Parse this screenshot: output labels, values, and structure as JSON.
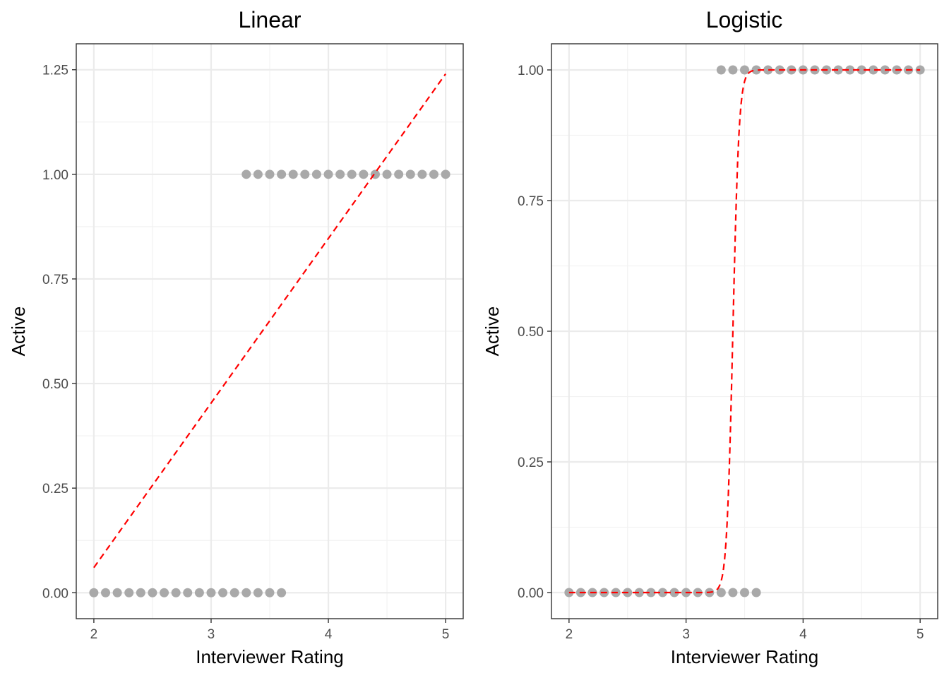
{
  "chart_data": [
    {
      "type": "scatter",
      "title": "Linear",
      "xlabel": "Interviewer Rating",
      "ylabel": "Active",
      "xlim": [
        1.85,
        5.15
      ],
      "ylim": [
        -0.062,
        1.312
      ],
      "x_ticks": [
        2,
        3,
        4,
        5
      ],
      "x_tick_labels": [
        "2",
        "3",
        "4",
        "5"
      ],
      "y_ticks": [
        0,
        0.25,
        0.5,
        0.75,
        1,
        1.25
      ],
      "y_tick_labels": [
        "0.00",
        "0.25",
        "0.50",
        "0.75",
        "1.00",
        "1.25"
      ],
      "grid": true,
      "series": [
        {
          "kind": "points",
          "color": "#a9a9a9",
          "points": [
            [
              2.0,
              0
            ],
            [
              2.1,
              0
            ],
            [
              2.2,
              0
            ],
            [
              2.3,
              0
            ],
            [
              2.4,
              0
            ],
            [
              2.5,
              0
            ],
            [
              2.6,
              0
            ],
            [
              2.7,
              0
            ],
            [
              2.8,
              0
            ],
            [
              2.9,
              0
            ],
            [
              3.0,
              0
            ],
            [
              3.1,
              0
            ],
            [
              3.2,
              0
            ],
            [
              3.3,
              0
            ],
            [
              3.4,
              0
            ],
            [
              3.5,
              0
            ],
            [
              3.6,
              0
            ],
            [
              3.3,
              1
            ],
            [
              3.4,
              1
            ],
            [
              3.5,
              1
            ],
            [
              3.6,
              1
            ],
            [
              3.7,
              1
            ],
            [
              3.8,
              1
            ],
            [
              3.9,
              1
            ],
            [
              4.0,
              1
            ],
            [
              4.1,
              1
            ],
            [
              4.2,
              1
            ],
            [
              4.3,
              1
            ],
            [
              4.4,
              1
            ],
            [
              4.5,
              1
            ],
            [
              4.6,
              1
            ],
            [
              4.7,
              1
            ],
            [
              4.8,
              1
            ],
            [
              4.9,
              1
            ],
            [
              5.0,
              1
            ]
          ]
        },
        {
          "kind": "line",
          "style": "dashed",
          "color": "#ff0000",
          "points": [
            [
              2.0,
              0.06
            ],
            [
              5.0,
              1.24
            ]
          ]
        }
      ]
    },
    {
      "type": "scatter",
      "title": "Logistic",
      "xlabel": "Interviewer Rating",
      "ylabel": "Active",
      "xlim": [
        1.85,
        5.15
      ],
      "ylim": [
        -0.05,
        1.05
      ],
      "x_ticks": [
        2,
        3,
        4,
        5
      ],
      "x_tick_labels": [
        "2",
        "3",
        "4",
        "5"
      ],
      "y_ticks": [
        0,
        0.25,
        0.5,
        0.75,
        1
      ],
      "y_tick_labels": [
        "0.00",
        "0.25",
        "0.50",
        "0.75",
        "1.00"
      ],
      "grid": true,
      "series": [
        {
          "kind": "points",
          "color": "#a9a9a9",
          "points": [
            [
              2.0,
              0
            ],
            [
              2.1,
              0
            ],
            [
              2.2,
              0
            ],
            [
              2.3,
              0
            ],
            [
              2.4,
              0
            ],
            [
              2.5,
              0
            ],
            [
              2.6,
              0
            ],
            [
              2.7,
              0
            ],
            [
              2.8,
              0
            ],
            [
              2.9,
              0
            ],
            [
              3.0,
              0
            ],
            [
              3.1,
              0
            ],
            [
              3.2,
              0
            ],
            [
              3.3,
              0
            ],
            [
              3.4,
              0
            ],
            [
              3.5,
              0
            ],
            [
              3.6,
              0
            ],
            [
              3.3,
              1
            ],
            [
              3.4,
              1
            ],
            [
              3.5,
              1
            ],
            [
              3.6,
              1
            ],
            [
              3.7,
              1
            ],
            [
              3.8,
              1
            ],
            [
              3.9,
              1
            ],
            [
              4.0,
              1
            ],
            [
              4.1,
              1
            ],
            [
              4.2,
              1
            ],
            [
              4.3,
              1
            ],
            [
              4.4,
              1
            ],
            [
              4.5,
              1
            ],
            [
              4.6,
              1
            ],
            [
              4.7,
              1
            ],
            [
              4.8,
              1
            ],
            [
              4.9,
              1
            ],
            [
              5.0,
              1
            ]
          ]
        },
        {
          "kind": "logistic-curve",
          "style": "dashed",
          "color": "#ff0000",
          "midpoint": 3.4,
          "slope": 38,
          "x_range": [
            2.0,
            5.0
          ]
        }
      ]
    }
  ]
}
